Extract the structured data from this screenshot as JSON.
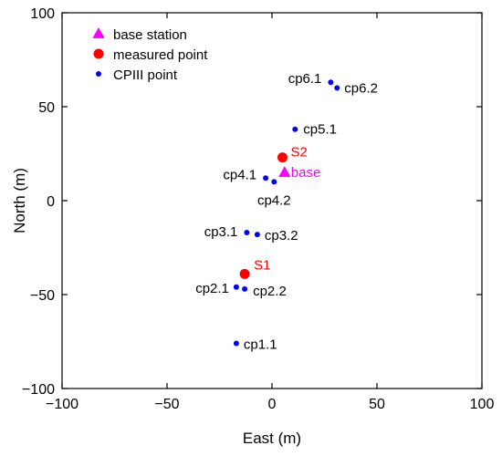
{
  "chart_data": {
    "type": "scatter",
    "xlabel": "East (m)",
    "ylabel": "North (m)",
    "xlim": [
      -100,
      100
    ],
    "ylim": [
      -100,
      100
    ],
    "xticks": [
      -100,
      -50,
      0,
      50,
      100
    ],
    "yticks": [
      -100,
      -50,
      0,
      50,
      100
    ],
    "xtick_labels": [
      "−100",
      "−50",
      "0",
      "50",
      "100"
    ],
    "ytick_labels": [
      "−100",
      "−50",
      "0",
      "50",
      "100"
    ],
    "grid": false,
    "legend_position": "top-left",
    "series": [
      {
        "name": "base station",
        "marker": "triangle",
        "color": "#ff00ff",
        "points": [
          {
            "x": 6,
            "y": 15,
            "label": "base"
          }
        ]
      },
      {
        "name": "measured point",
        "marker": "circle-large",
        "color": "#ff0000",
        "points": [
          {
            "x": 5,
            "y": 23,
            "label": "S2"
          },
          {
            "x": -13,
            "y": -39,
            "label": "S1"
          }
        ]
      },
      {
        "name": "CPIII point",
        "marker": "circle-small",
        "color": "#0000ff",
        "label_color": "#000000",
        "points": [
          {
            "x": 28,
            "y": 63,
            "label": "cp6.1"
          },
          {
            "x": 31,
            "y": 60,
            "label": "cp6.2"
          },
          {
            "x": 11,
            "y": 38,
            "label": "cp5.1"
          },
          {
            "x": -3,
            "y": 12,
            "label": "cp4.1"
          },
          {
            "x": 1,
            "y": 10,
            "label": "cp4.2"
          },
          {
            "x": -12,
            "y": -17,
            "label": "cp3.1"
          },
          {
            "x": -7,
            "y": -18,
            "label": "cp3.2"
          },
          {
            "x": -17,
            "y": -46,
            "label": "cp2.1"
          },
          {
            "x": -13,
            "y": -47,
            "label": "cp2.2"
          },
          {
            "x": -17,
            "y": -76,
            "label": "cp1.1"
          }
        ]
      }
    ]
  }
}
